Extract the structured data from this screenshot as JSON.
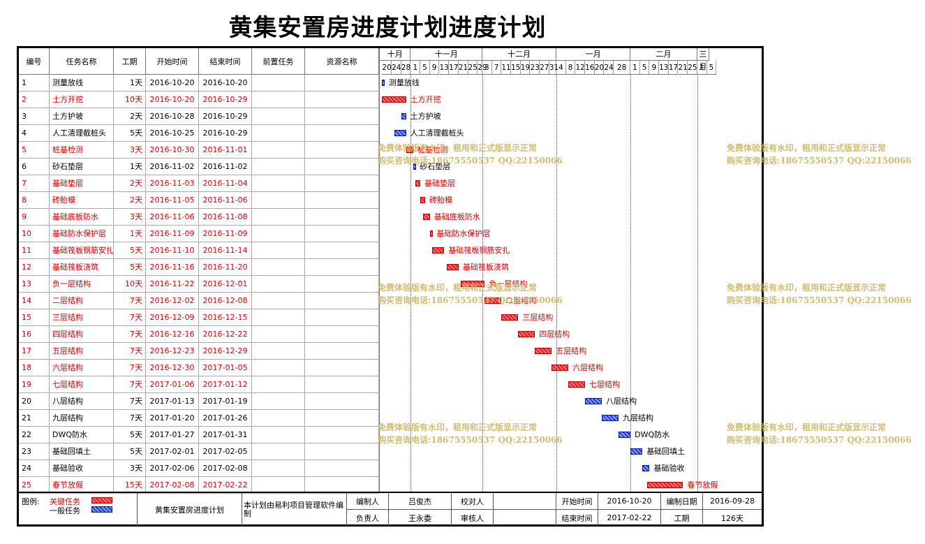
{
  "title": "黄集安置房进度计划进度计划",
  "columns": {
    "id": "编号",
    "name": "任务名称",
    "duration": "工期",
    "start": "开始时间",
    "end": "结束时间",
    "pred": "前置任务",
    "res": "资源名称"
  },
  "timeline": {
    "months": [
      "十月",
      "十一月",
      "十二月",
      "一月",
      "二月",
      "三月"
    ],
    "days": [
      "20",
      "24",
      "28",
      "1",
      "5",
      "9",
      "13",
      "17",
      "21",
      "25",
      "29",
      "3",
      "7",
      "11",
      "15",
      "19",
      "23",
      "27",
      "31",
      "4",
      "8",
      "12",
      "16",
      "20",
      "24",
      "28",
      "1",
      "5",
      "9",
      "13",
      "17",
      "21",
      "25",
      "1",
      "5"
    ]
  },
  "tasks": [
    {
      "id": "1",
      "name": "测量放线",
      "duration": "1天",
      "start": "2016-10-20",
      "end": "2016-10-20",
      "critical": false
    },
    {
      "id": "2",
      "name": "土方开挖",
      "duration": "10天",
      "start": "2016-10-20",
      "end": "2016-10-29",
      "critical": true
    },
    {
      "id": "3",
      "name": "土方护坡",
      "duration": "2天",
      "start": "2016-10-28",
      "end": "2016-10-29",
      "critical": false
    },
    {
      "id": "4",
      "name": "人工清理截桩头",
      "duration": "5天",
      "start": "2016-10-25",
      "end": "2016-10-29",
      "critical": false
    },
    {
      "id": "5",
      "name": "桩基检测",
      "duration": "3天",
      "start": "2016-10-30",
      "end": "2016-11-01",
      "critical": true
    },
    {
      "id": "6",
      "name": "砂石垫层",
      "duration": "1天",
      "start": "2016-11-02",
      "end": "2016-11-02",
      "critical": false
    },
    {
      "id": "7",
      "name": "基础垫层",
      "duration": "2天",
      "start": "2016-11-03",
      "end": "2016-11-04",
      "critical": true
    },
    {
      "id": "8",
      "name": "砖胎模",
      "duration": "2天",
      "start": "2016-11-05",
      "end": "2016-11-06",
      "critical": true
    },
    {
      "id": "9",
      "name": "基础底板防水",
      "duration": "3天",
      "start": "2016-11-06",
      "end": "2016-11-08",
      "critical": true
    },
    {
      "id": "10",
      "name": "基础防水保护层",
      "duration": "1天",
      "start": "2016-11-09",
      "end": "2016-11-09",
      "critical": true
    },
    {
      "id": "11",
      "name": "基础筏板钢筋安扎",
      "duration": "5天",
      "start": "2016-11-10",
      "end": "2016-11-14",
      "critical": true
    },
    {
      "id": "12",
      "name": "基础筏板浇筑",
      "duration": "5天",
      "start": "2016-11-16",
      "end": "2016-11-20",
      "critical": true
    },
    {
      "id": "13",
      "name": "负一层结构",
      "duration": "10天",
      "start": "2016-11-22",
      "end": "2016-12-01",
      "critical": true
    },
    {
      "id": "14",
      "name": "二层结构",
      "duration": "7天",
      "start": "2016-12-02",
      "end": "2016-12-08",
      "critical": true
    },
    {
      "id": "15",
      "name": "三层结构",
      "duration": "7天",
      "start": "2016-12-09",
      "end": "2016-12-15",
      "critical": true
    },
    {
      "id": "16",
      "name": "四层结构",
      "duration": "7天",
      "start": "2016-12-16",
      "end": "2016-12-22",
      "critical": true
    },
    {
      "id": "17",
      "name": "五层结构",
      "duration": "7天",
      "start": "2016-12-23",
      "end": "2016-12-29",
      "critical": true
    },
    {
      "id": "18",
      "name": "六层结构",
      "duration": "7天",
      "start": "2016-12-30",
      "end": "2017-01-05",
      "critical": true
    },
    {
      "id": "19",
      "name": "七层结构",
      "duration": "7天",
      "start": "2017-01-06",
      "end": "2017-01-12",
      "critical": true
    },
    {
      "id": "20",
      "name": "八层结构",
      "duration": "7天",
      "start": "2017-01-13",
      "end": "2017-01-19",
      "critical": false
    },
    {
      "id": "21",
      "name": "九层结构",
      "duration": "7天",
      "start": "2017-01-20",
      "end": "2017-01-26",
      "critical": false
    },
    {
      "id": "22",
      "name": "DWQ防水",
      "duration": "5天",
      "start": "2017-01-27",
      "end": "2017-01-31",
      "critical": false
    },
    {
      "id": "23",
      "name": "基础回填土",
      "duration": "5天",
      "start": "2017-02-01",
      "end": "2017-02-05",
      "critical": false
    },
    {
      "id": "24",
      "name": "基础验收",
      "duration": "3天",
      "start": "2017-02-06",
      "end": "2017-02-08",
      "critical": false
    },
    {
      "id": "25",
      "name": "春节放假",
      "duration": "15天",
      "start": "2017-02-08",
      "end": "2017-02-22",
      "critical": true
    }
  ],
  "watermark": {
    "line1": "免费体验版有水印，租用和正式版显示正常",
    "line2": "购买咨询电话:18675550537 QQ:22150066"
  },
  "footer": {
    "legend_label": "图例:",
    "legend_critical": "关键任务",
    "legend_normal": "一般任务",
    "project_name": "黄集安置房进度计划",
    "note": "本计划由易利项目管理软件编制",
    "editor_label": "编制人",
    "editor": "吕俊杰",
    "checker_label": "校对人",
    "checker": "",
    "owner_label": "负责人",
    "owner": "王永委",
    "reviewer_label": "审核人",
    "reviewer": "",
    "start_label": "开始时间",
    "start": "2016-10-20",
    "end_label": "结束时间",
    "end": "2017-02-22",
    "date_label": "编制日期",
    "date": "2016-09-28",
    "duration_label": "工期",
    "duration": "126天"
  },
  "colors": {
    "critical": "#e00000",
    "normal": "#1a3fd0",
    "watermark": "#cfb96a"
  }
}
